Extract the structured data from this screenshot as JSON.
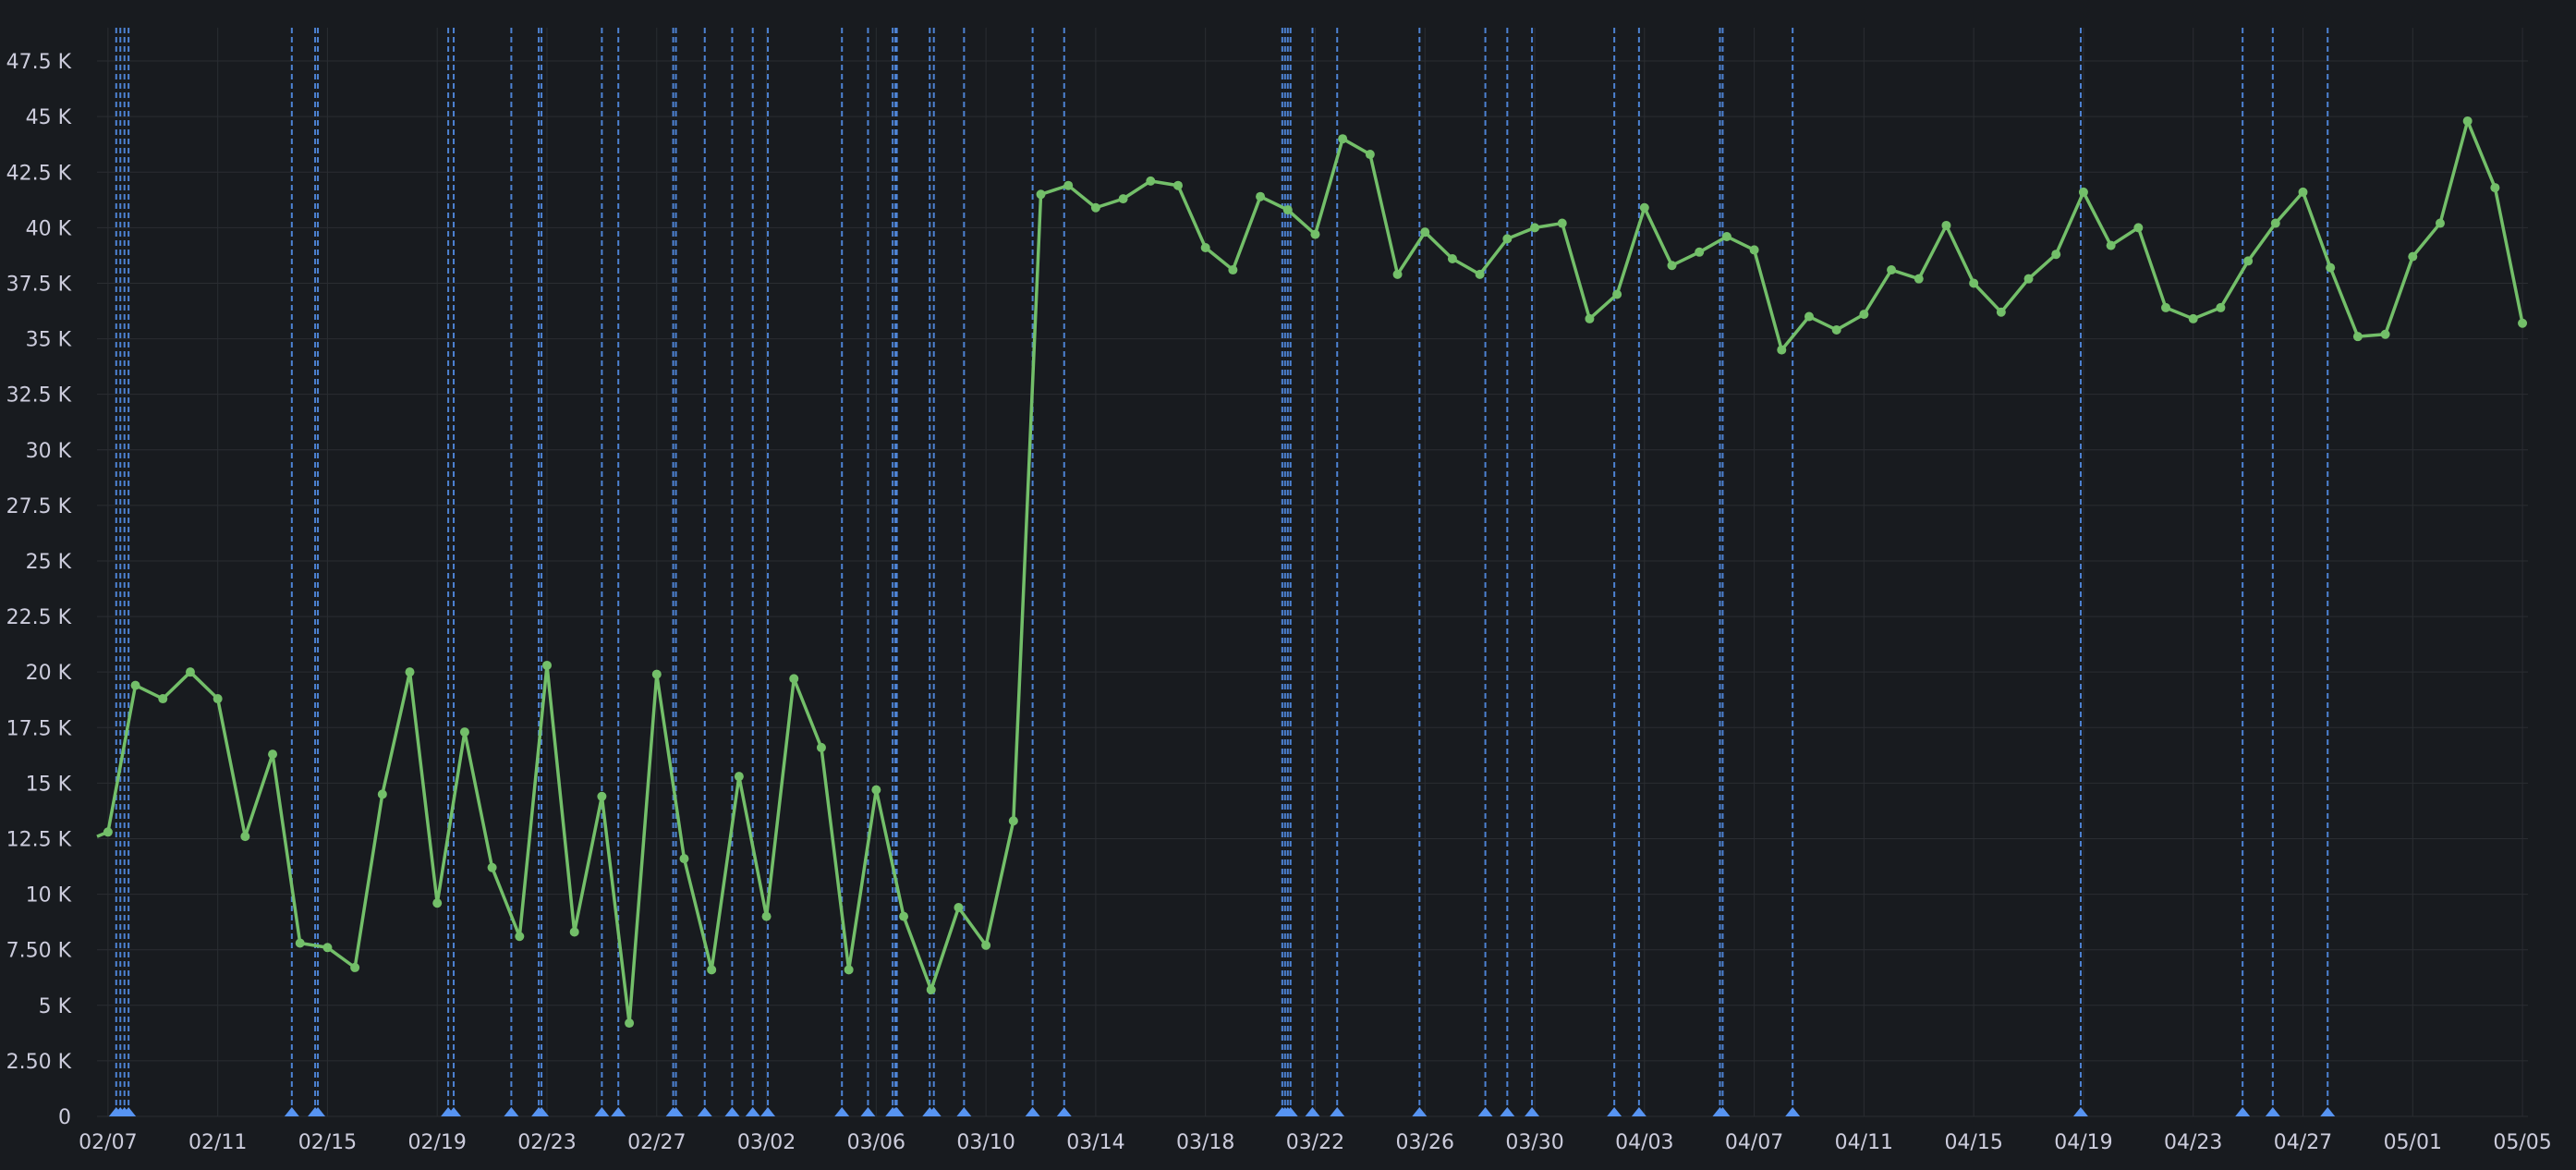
{
  "chart_data": {
    "type": "line",
    "title": "",
    "xlabel": "",
    "ylabel": "",
    "x_ticks": [
      "02/07",
      "02/11",
      "02/15",
      "02/19",
      "02/23",
      "02/27",
      "03/02",
      "03/06",
      "03/10",
      "03/14",
      "03/18",
      "03/22",
      "03/26",
      "03/30",
      "04/03",
      "04/07",
      "04/11",
      "04/15",
      "04/19",
      "04/23",
      "04/27",
      "05/01",
      "05/05"
    ],
    "y_ticks": [
      "0",
      "2.50 K",
      "5 K",
      "7.50 K",
      "10 K",
      "12.5 K",
      "15 K",
      "17.5 K",
      "20 K",
      "22.5 K",
      "25 K",
      "27.5 K",
      "30 K",
      "32.5 K",
      "35 K",
      "37.5 K",
      "40 K",
      "42.5 K",
      "45 K",
      "47.5 K"
    ],
    "ylim": [
      0,
      49000
    ],
    "grid": true,
    "legend": "none",
    "colors": {
      "background": "#181b1f",
      "series": "#73bf69",
      "annotation": "#5794f2",
      "grid": "#2a2d32",
      "text": "#ccccdc"
    },
    "x_start_label": "02/07",
    "series": [
      {
        "day_offset": [
          -0.4,
          0,
          1,
          2,
          3,
          4,
          5,
          6,
          7,
          8,
          9,
          10,
          11,
          12,
          13,
          14,
          15,
          16,
          17,
          18,
          19,
          20,
          21,
          22,
          23,
          24,
          25,
          26,
          27,
          28,
          29,
          30,
          31,
          32,
          33,
          34,
          35,
          36,
          37,
          38,
          39,
          40,
          41,
          42,
          43,
          44,
          45,
          46,
          47,
          48,
          49,
          50,
          51,
          52,
          53,
          54,
          55,
          56,
          57,
          58,
          59,
          60,
          61,
          62,
          63,
          64,
          65,
          66,
          67,
          68,
          69,
          70,
          71,
          72,
          73,
          74,
          75,
          76,
          77,
          78,
          79,
          80,
          81,
          82,
          83,
          84,
          85,
          86,
          87,
          88
        ],
        "values": [
          12600,
          12800,
          19400,
          18800,
          20000,
          18800,
          12600,
          16300,
          7800,
          7600,
          6700,
          14500,
          20000,
          9600,
          17300,
          11200,
          8100,
          20300,
          8300,
          14400,
          4200,
          19900,
          11600,
          6600,
          15300,
          9000,
          19700,
          16600,
          6600,
          14700,
          9000,
          5700,
          9400,
          7700,
          13300,
          41500,
          41900,
          40900,
          41300,
          42100,
          41900,
          39100,
          38100,
          41400,
          40800,
          39700,
          44000,
          43300,
          37900,
          39800,
          38600,
          37900,
          39500,
          40000,
          40200,
          35900,
          37000,
          40900,
          38300,
          38900,
          39600,
          39000,
          34500,
          36000,
          35400,
          36100,
          38100,
          37700,
          40100,
          37500,
          36200,
          37700,
          38800,
          41600,
          39200,
          40000,
          36400,
          35900,
          36400,
          38500,
          40200,
          41600,
          38200,
          35100,
          35200,
          38700,
          40200,
          44800,
          41800,
          35700
        ]
      }
    ],
    "annotations_day_offset": [
      0.3,
      0.45,
      0.6,
      0.75,
      6.7,
      7.55,
      7.65,
      12.4,
      12.6,
      14.7,
      15.7,
      15.8,
      18.0,
      18.6,
      20.6,
      20.7,
      21.75,
      22.75,
      23.5,
      24.05,
      26.75,
      27.7,
      28.6,
      28.7,
      28.75,
      29.95,
      30.1,
      31.2,
      33.7,
      34.85,
      42.8,
      42.9,
      43.0,
      43.1,
      43.9,
      44.8,
      47.8,
      50.2,
      51.0,
      51.9,
      54.9,
      55.8,
      58.75,
      58.85,
      61.4,
      71.9,
      77.8,
      78.9,
      80.9
    ]
  }
}
